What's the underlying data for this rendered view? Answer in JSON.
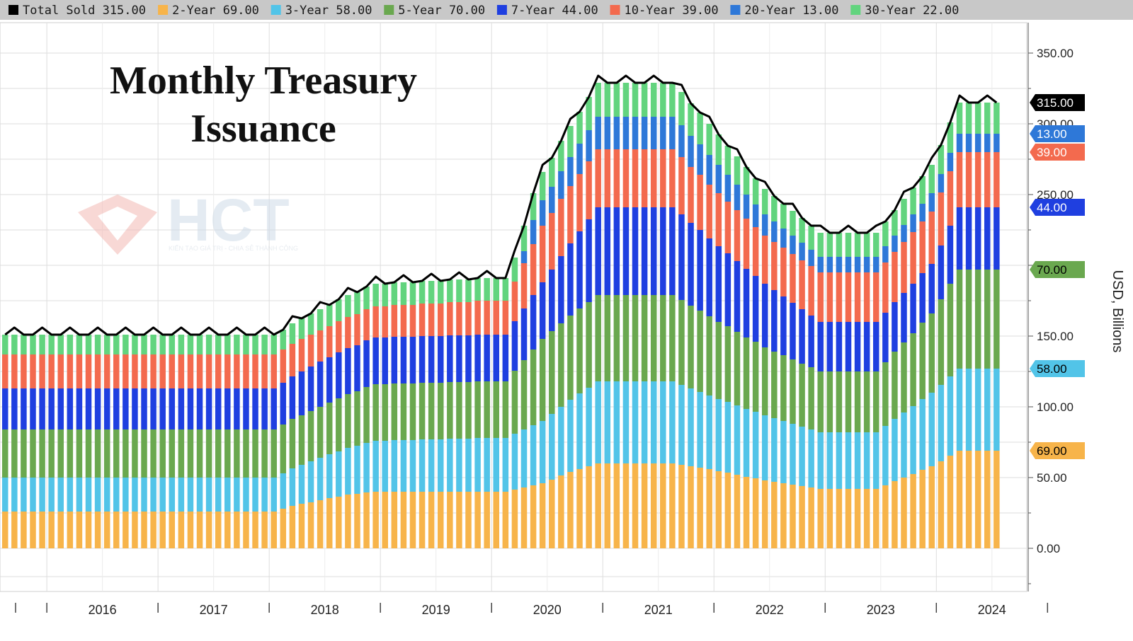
{
  "chart_data": {
    "type": "bar",
    "stacked": true,
    "title": "Monthly Treasury Issuance",
    "ylabel": "USD, Billions",
    "ylim": [
      -20,
      360
    ],
    "y_ticks": [
      0,
      50,
      100,
      150,
      250,
      300,
      350
    ],
    "y_tick_labels": [
      "0.00",
      "50.00",
      "100.00",
      "150.00",
      "250.00",
      "300.00",
      "350.00"
    ],
    "grid": true,
    "x_start": "2015-08",
    "x_end": "2024-07",
    "x_years": [
      "2016",
      "2017",
      "2018",
      "2019",
      "2020",
      "2021",
      "2022",
      "2023",
      "2024"
    ],
    "legend": {
      "placement": "top",
      "items": [
        {
          "label": "Total Sold",
          "value": "315.00",
          "color": "#000000"
        },
        {
          "label": "2-Year",
          "value": "69.00",
          "color": "#f7b44a"
        },
        {
          "label": "3-Year",
          "value": "58.00",
          "color": "#52c4e8"
        },
        {
          "label": "5-Year",
          "value": "70.00",
          "color": "#6aa84f"
        },
        {
          "label": "7-Year",
          "value": "44.00",
          "color": "#1f3fe0"
        },
        {
          "label": "10-Year",
          "value": "39.00",
          "color": "#f36a4e"
        },
        {
          "label": "20-Year",
          "value": "13.00",
          "color": "#2e78d8"
        },
        {
          "label": "30-Year",
          "value": "22.00",
          "color": "#62d47e"
        }
      ]
    },
    "series_keyframes": {
      "2-Year": [
        [
          "2015-08",
          26
        ],
        [
          "2018-01",
          26
        ],
        [
          "2018-03",
          30
        ],
        [
          "2018-06",
          34
        ],
        [
          "2018-09",
          38
        ],
        [
          "2018-12",
          40
        ],
        [
          "2019-12",
          40
        ],
        [
          "2020-02",
          40
        ],
        [
          "2020-06",
          46
        ],
        [
          "2020-09",
          54
        ],
        [
          "2020-12",
          60
        ],
        [
          "2021-08",
          60
        ],
        [
          "2021-12",
          56
        ],
        [
          "2022-06",
          48
        ],
        [
          "2022-12",
          42
        ],
        [
          "2023-06",
          42
        ],
        [
          "2023-12",
          58
        ],
        [
          "2024-03",
          69
        ],
        [
          "2024-07",
          69
        ]
      ],
      "3-Year": [
        [
          "2015-08",
          24
        ],
        [
          "2018-01",
          24
        ],
        [
          "2018-06",
          30
        ],
        [
          "2018-12",
          36
        ],
        [
          "2019-12",
          38
        ],
        [
          "2020-02",
          38
        ],
        [
          "2020-06",
          44
        ],
        [
          "2020-12",
          58
        ],
        [
          "2021-08",
          58
        ],
        [
          "2021-12",
          52
        ],
        [
          "2022-06",
          46
        ],
        [
          "2022-12",
          40
        ],
        [
          "2023-06",
          40
        ],
        [
          "2023-12",
          52
        ],
        [
          "2024-03",
          58
        ],
        [
          "2024-07",
          58
        ]
      ],
      "5-Year": [
        [
          "2015-08",
          34
        ],
        [
          "2018-01",
          34
        ],
        [
          "2018-06",
          36
        ],
        [
          "2018-12",
          40
        ],
        [
          "2019-12",
          40
        ],
        [
          "2020-02",
          40
        ],
        [
          "2020-06",
          58
        ],
        [
          "2020-12",
          61
        ],
        [
          "2021-08",
          61
        ],
        [
          "2021-12",
          56
        ],
        [
          "2022-06",
          48
        ],
        [
          "2022-12",
          43
        ],
        [
          "2023-06",
          43
        ],
        [
          "2023-12",
          56
        ],
        [
          "2024-03",
          70
        ],
        [
          "2024-07",
          70
        ]
      ],
      "7-Year": [
        [
          "2015-08",
          29
        ],
        [
          "2018-01",
          29
        ],
        [
          "2018-06",
          32
        ],
        [
          "2018-12",
          33
        ],
        [
          "2019-12",
          33
        ],
        [
          "2020-02",
          33
        ],
        [
          "2020-06",
          40
        ],
        [
          "2020-12",
          62
        ],
        [
          "2021-08",
          62
        ],
        [
          "2021-12",
          55
        ],
        [
          "2022-06",
          45
        ],
        [
          "2022-12",
          35
        ],
        [
          "2023-06",
          35
        ],
        [
          "2023-12",
          35
        ],
        [
          "2024-03",
          44
        ],
        [
          "2024-07",
          44
        ]
      ],
      "10-Year": [
        [
          "2015-08",
          24
        ],
        [
          "2018-01",
          24
        ],
        [
          "2018-06",
          22
        ],
        [
          "2018-12",
          22
        ],
        [
          "2019-12",
          24
        ],
        [
          "2020-02",
          24
        ],
        [
          "2020-06",
          40
        ],
        [
          "2020-12",
          41
        ],
        [
          "2021-08",
          41
        ],
        [
          "2021-12",
          38
        ],
        [
          "2022-06",
          34
        ],
        [
          "2022-12",
          35
        ],
        [
          "2023-06",
          35
        ],
        [
          "2023-12",
          37
        ],
        [
          "2024-03",
          39
        ],
        [
          "2024-07",
          39
        ]
      ],
      "20-Year": [
        [
          "2015-08",
          0
        ],
        [
          "2020-03",
          0
        ],
        [
          "2020-05",
          17
        ],
        [
          "2020-12",
          23
        ],
        [
          "2021-08",
          23
        ],
        [
          "2021-12",
          21
        ],
        [
          "2022-06",
          15
        ],
        [
          "2022-12",
          11
        ],
        [
          "2023-06",
          11
        ],
        [
          "2023-12",
          13
        ],
        [
          "2024-07",
          13
        ]
      ],
      "30-Year": [
        [
          "2015-08",
          14
        ],
        [
          "2018-01",
          14
        ],
        [
          "2018-06",
          15
        ],
        [
          "2018-12",
          16
        ],
        [
          "2019-12",
          16
        ],
        [
          "2020-02",
          16
        ],
        [
          "2020-06",
          20
        ],
        [
          "2020-12",
          24
        ],
        [
          "2021-08",
          24
        ],
        [
          "2021-12",
          22
        ],
        [
          "2022-06",
          18
        ],
        [
          "2022-12",
          17
        ],
        [
          "2023-06",
          17
        ],
        [
          "2023-12",
          20
        ],
        [
          "2024-03",
          22
        ],
        [
          "2024-07",
          22
        ]
      ]
    },
    "flags": [
      {
        "series": "Total Sold",
        "value": 315,
        "label": "315.00",
        "color": "#000000",
        "text_color": "#ffffff"
      },
      {
        "series": "20-Year",
        "value": 293,
        "label": "13.00",
        "color": "#2e78d8",
        "text_color": "#ffffff"
      },
      {
        "series": "10-Year",
        "value": 280,
        "label": "39.00",
        "color": "#f36a4e",
        "text_color": "#ffffff"
      },
      {
        "series": "7-Year",
        "value": 241,
        "label": "44.00",
        "color": "#1f3fe0",
        "text_color": "#ffffff"
      },
      {
        "series": "5-Year",
        "value": 197,
        "label": "70.00",
        "color": "#6aa84f",
        "text_color": "#000000"
      },
      {
        "series": "3-Year",
        "value": 127,
        "label": "58.00",
        "color": "#52c4e8",
        "text_color": "#000000"
      },
      {
        "series": "2-Year",
        "value": 69,
        "label": "69.00",
        "color": "#f7b44a",
        "text_color": "#000000"
      }
    ]
  },
  "watermark": {
    "text": "HCT",
    "subtext": "KIẾN TẠO GIÁ TRỊ - CHIA SẺ THÀNH CÔNG",
    "colors": [
      "#f3b9b4",
      "#c9d4e3"
    ]
  }
}
